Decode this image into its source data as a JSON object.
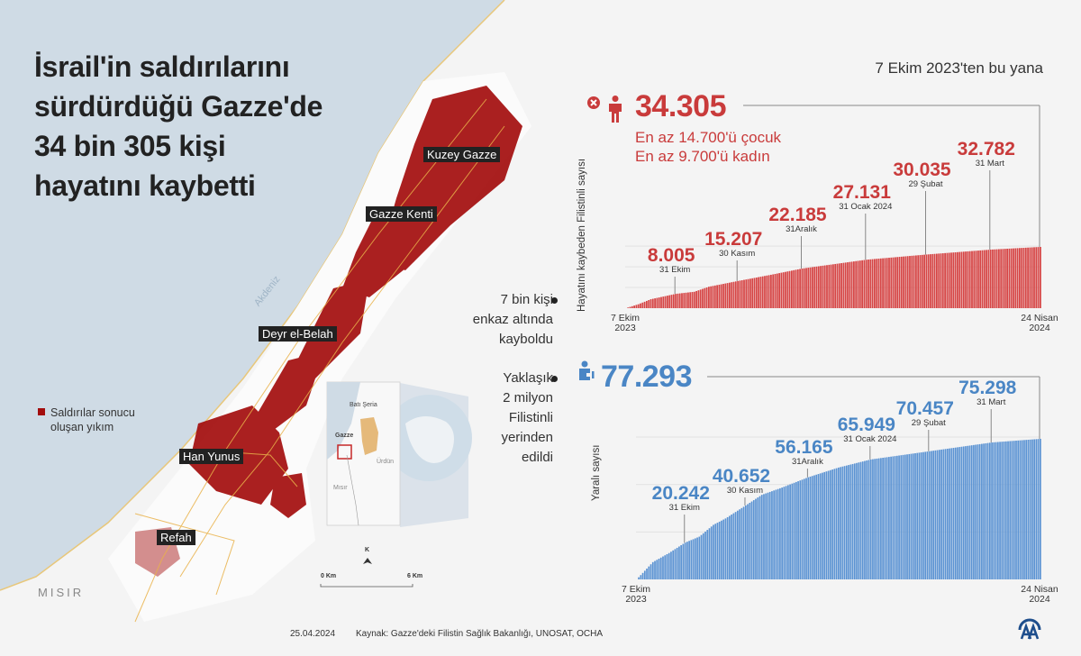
{
  "title_lines": [
    "İsrail'in saldırılarını",
    "sürdürdüğü Gazze'de",
    "34 bin 305 kişi",
    "hayatını kaybetti"
  ],
  "map": {
    "legend": {
      "label_line1": "Saldırılar sonucu",
      "label_line2": "oluşan yıkım",
      "color": "#a30d0d"
    },
    "cities": [
      "Kuzey Gazze",
      "Gazze Kenti",
      "Deyr el-Belah",
      "Han Yunus",
      "Refah"
    ],
    "sea_label": "Akdeniz",
    "country_label": "MISIR",
    "inset": {
      "west_bank": "Batı Şeria",
      "gaza": "Gazze",
      "jordan": "Ürdün",
      "egypt": "Mısır"
    },
    "scale": {
      "start": "0 Km",
      "end": "6 Km",
      "north": "K"
    }
  },
  "since_label": "7 Ekim 2023'ten bu yana",
  "deaths": {
    "total": "34.305",
    "children": "En az 14.700'ü çocuk",
    "women": "En az 9.700'ü kadın"
  },
  "side_notes": {
    "missing": [
      "7 bin kişi",
      "enkaz altında",
      "kayboldu"
    ],
    "displaced": [
      "Yaklaşık",
      "2 milyon",
      "Filistinli",
      "yerinden",
      "edildi"
    ]
  },
  "wounded": {
    "total": "77.293"
  },
  "chart_data": [
    {
      "type": "bar",
      "title": "Hayatını kaybeden Filistinli sayısı",
      "ylabel": "Hayatını kaybeden Filistinli sayısı",
      "x_start": "7 Ekim 2023",
      "x_end": "24 Nisan 2024",
      "x_start_lines": [
        "7 Ekim",
        "2023"
      ],
      "x_end_lines": [
        "24 Nisan",
        "2024"
      ],
      "ylim": [
        0,
        34305
      ],
      "color": "#d64545",
      "anchors": [
        {
          "day": 0,
          "value": 0
        },
        {
          "day": 6,
          "value": 2200
        },
        {
          "day": 12,
          "value": 5000
        },
        {
          "day": 24,
          "value": 8005
        },
        {
          "day": 33,
          "value": 9200
        },
        {
          "day": 40,
          "value": 12000
        },
        {
          "day": 54,
          "value": 15207
        },
        {
          "day": 60,
          "value": 16500
        },
        {
          "day": 70,
          "value": 18700
        },
        {
          "day": 85,
          "value": 22185
        },
        {
          "day": 116,
          "value": 27131
        },
        {
          "day": 145,
          "value": 30035
        },
        {
          "day": 176,
          "value": 32782
        },
        {
          "day": 200,
          "value": 34305
        }
      ],
      "labels": [
        {
          "value": "8.005",
          "date": "31 Ekim",
          "day": 24
        },
        {
          "value": "15.207",
          "date": "30 Kasım",
          "day": 54
        },
        {
          "value": "22.185",
          "date": "31Aralık",
          "day": 85
        },
        {
          "value": "27.131",
          "date": "31 Ocak 2024",
          "day": 116
        },
        {
          "value": "30.035",
          "date": "29 Şubat",
          "day": 145
        },
        {
          "value": "32.782",
          "date": "31 Mart",
          "day": 176
        }
      ]
    },
    {
      "type": "bar",
      "title": "Yaralı sayısı",
      "ylabel": "Yaralı sayısı",
      "x_start": "7 Ekim 2023",
      "x_end": "24 Nisan 2024",
      "x_start_lines": [
        "7 Ekim",
        "2023"
      ],
      "x_end_lines": [
        "24 Nisan",
        "2024"
      ],
      "ylim": [
        0,
        77293
      ],
      "color": "#5b93d3",
      "anchors": [
        {
          "day": 0,
          "value": 0
        },
        {
          "day": 8,
          "value": 9500
        },
        {
          "day": 16,
          "value": 14500
        },
        {
          "day": 24,
          "value": 20242
        },
        {
          "day": 31,
          "value": 23500
        },
        {
          "day": 38,
          "value": 30000
        },
        {
          "day": 44,
          "value": 33500
        },
        {
          "day": 54,
          "value": 40652
        },
        {
          "day": 62,
          "value": 46500
        },
        {
          "day": 72,
          "value": 50500
        },
        {
          "day": 85,
          "value": 56165
        },
        {
          "day": 100,
          "value": 61500
        },
        {
          "day": 116,
          "value": 65949
        },
        {
          "day": 145,
          "value": 70457
        },
        {
          "day": 176,
          "value": 75298
        },
        {
          "day": 200,
          "value": 77293
        }
      ],
      "labels": [
        {
          "value": "20.242",
          "date": "31 Ekim",
          "day": 24
        },
        {
          "value": "40.652",
          "date": "30 Kasım",
          "day": 54
        },
        {
          "value": "56.165",
          "date": "31Aralık",
          "day": 85
        },
        {
          "value": "65.949",
          "date": "31 Ocak 2024",
          "day": 116
        },
        {
          "value": "70.457",
          "date": "29 Şubat",
          "day": 145
        },
        {
          "value": "75.298",
          "date": "31 Mart",
          "day": 176
        }
      ]
    }
  ],
  "footer": {
    "date": "25.04.2024",
    "source": "Kaynak: Gazze'deki Filistin Sağlık Bakanlığı, UNOSAT, OCHA",
    "logo": "AA"
  }
}
